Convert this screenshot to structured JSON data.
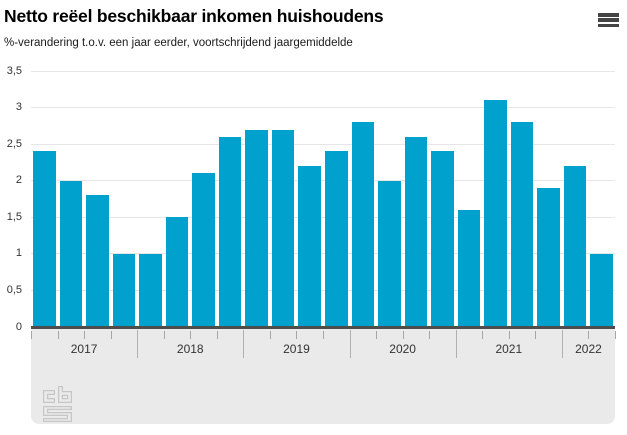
{
  "header": {
    "title": "Netto reëel beschikbaar inkomen huishoudens",
    "subtitle": "%-verandering t.o.v. een jaar eerder, voortschrijdend jaargemiddelde",
    "menu_icon": "hamburger-menu"
  },
  "chart_data": {
    "type": "bar",
    "title": "Netto reëel beschikbaar inkomen huishoudens",
    "subtitle": "%-verandering t.o.v. een jaar eerder, voortschrijdend jaargemiddelde",
    "unit": "%",
    "groups": [
      {
        "year": "2017",
        "values": [
          2.4,
          2.0,
          1.8,
          1.0
        ]
      },
      {
        "year": "2018",
        "values": [
          1.0,
          1.5,
          2.1,
          2.6
        ]
      },
      {
        "year": "2019",
        "values": [
          2.7,
          2.7,
          2.2,
          2.4
        ]
      },
      {
        "year": "2020",
        "values": [
          2.8,
          2.0,
          2.6,
          2.4
        ]
      },
      {
        "year": "2021",
        "values": [
          1.6,
          3.1,
          2.8,
          1.9
        ]
      },
      {
        "year": "2022",
        "values": [
          2.2,
          1.0
        ]
      }
    ],
    "ylim": [
      0,
      3.5
    ],
    "ytick_step": 0.5,
    "ytick_labels": [
      "0",
      "0,5",
      "1",
      "1,5",
      "2",
      "2,5",
      "3",
      "3,5"
    ],
    "grid": true,
    "legend": false,
    "bar_color": "#00a1cd"
  },
  "footer": {
    "logo": "cbs-logo"
  }
}
